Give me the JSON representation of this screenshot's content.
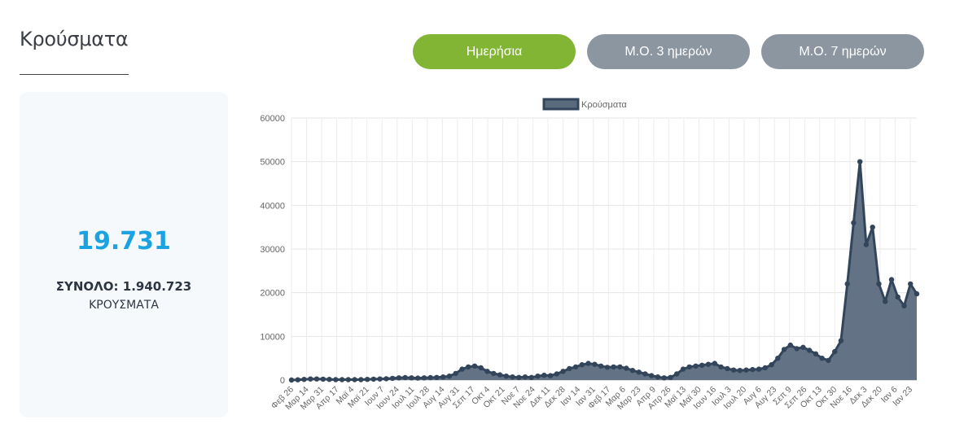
{
  "header": {
    "title": "Κρούσματα"
  },
  "toggles": {
    "daily": "Ημερήσια",
    "avg3": "Μ.Ο. 3 ημερών",
    "avg7": "Μ.Ο. 7 ημερών"
  },
  "summary": {
    "today": "19.731",
    "total_line": "ΣΥΝΟΛΟ: 1.940.723",
    "unit": "ΚΡΟΥΣΜΑΤΑ"
  },
  "colors": {
    "accent_green": "#83b535",
    "button_gray": "#8b96a0",
    "highlight_blue": "#1aa3e0",
    "series_line": "#33455a",
    "series_fill": "#5b6b7e"
  },
  "chart_data": {
    "type": "area",
    "legend": "Κρούσματα",
    "legend_position": "top-center",
    "grid": true,
    "ylim": [
      0,
      60000
    ],
    "y_ticks": [
      "0",
      "10000",
      "20000",
      "30000",
      "40000",
      "50000",
      "60000"
    ],
    "x_tick_labels": [
      "Φεβ 26",
      "Μαρ 14",
      "Μαρ 31",
      "Απρ 17",
      "Μαϊ 4",
      "Μαϊ 21",
      "Ιουν 7",
      "Ιουν 24",
      "Ιουλ 11",
      "Ιουλ 28",
      "Αυγ 14",
      "Αυγ 31",
      "Σεπ 17",
      "Οκτ 4",
      "Οκτ 21",
      "Νοε 7",
      "Νοε 24",
      "Δεκ 11",
      "Δεκ 28",
      "Ιαν 14",
      "Ιαν 31",
      "Φεβ 17",
      "Μαρ 6",
      "Μαρ 23",
      "Απρ 9",
      "Απρ 26",
      "Μαϊ 13",
      "Μαϊ 30",
      "Ιουν 16",
      "Ιουλ 3",
      "Ιουλ 20",
      "Αυγ 6",
      "Αυγ 23",
      "Σεπ 9",
      "Σεπ 26",
      "Οκτ 13",
      "Οκτ 30",
      "Νοε 16",
      "Δεκ 3",
      "Δεκ 20",
      "Ιαν 6",
      "Ιαν 23"
    ],
    "series": [
      {
        "name": "Κρούσματα",
        "values": [
          0,
          50,
          150,
          250,
          250,
          200,
          150,
          100,
          100,
          100,
          100,
          100,
          150,
          200,
          250,
          300,
          400,
          500,
          550,
          500,
          450,
          500,
          550,
          600,
          700,
          900,
          1500,
          2500,
          3000,
          3200,
          2800,
          2000,
          1500,
          1200,
          900,
          700,
          600,
          700,
          600,
          900,
          1100,
          1000,
          1400,
          2000,
          2600,
          3000,
          3500,
          3800,
          3600,
          3200,
          2900,
          3000,
          3000,
          2700,
          2200,
          1800,
          1400,
          1000,
          700,
          500,
          600,
          1400,
          2500,
          3000,
          3200,
          3400,
          3600,
          3800,
          3000,
          2600,
          2300,
          2200,
          2300,
          2400,
          2500,
          2800,
          3500,
          5000,
          7000,
          8000,
          7200,
          7500,
          6800,
          6000,
          5000,
          4500,
          6500,
          9000,
          22000,
          36000,
          50000,
          31000,
          35000,
          22000,
          18000,
          23000,
          19000,
          17000,
          22000,
          19731
        ]
      }
    ]
  }
}
